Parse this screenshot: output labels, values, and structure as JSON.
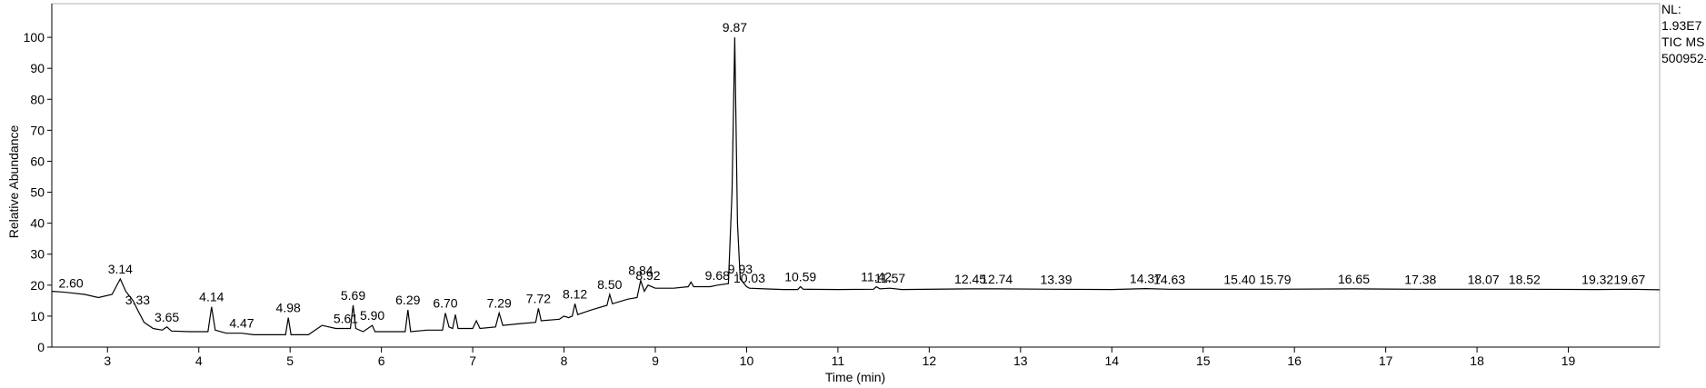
{
  "chart_data": {
    "type": "line",
    "xlabel": "Time (min)",
    "ylabel": "Relative Abundance",
    "info": [
      "NL:",
      "1.93E7",
      "TIC MS",
      "500952-"
    ],
    "color": "#000000",
    "xlim": [
      2.39,
      20.0
    ],
    "ylim": [
      0,
      110
    ],
    "xticks": [
      3,
      4,
      5,
      6,
      7,
      8,
      9,
      10,
      11,
      12,
      13,
      14,
      15,
      16,
      17,
      18,
      19
    ],
    "yticks": [
      0,
      10,
      20,
      30,
      40,
      50,
      60,
      70,
      80,
      90,
      100
    ],
    "x": [
      2.39,
      2.5,
      2.6,
      2.75,
      2.9,
      3.05,
      3.14,
      3.2,
      3.28,
      3.33,
      3.4,
      3.5,
      3.6,
      3.65,
      3.7,
      3.9,
      4.1,
      4.14,
      4.18,
      4.3,
      4.47,
      4.6,
      4.8,
      4.95,
      4.98,
      5.01,
      5.2,
      5.35,
      5.5,
      5.61,
      5.66,
      5.69,
      5.72,
      5.8,
      5.9,
      5.93,
      6.1,
      6.26,
      6.29,
      6.32,
      6.5,
      6.67,
      6.7,
      6.74,
      6.78,
      6.81,
      6.84,
      7.0,
      7.04,
      7.08,
      7.25,
      7.29,
      7.33,
      7.5,
      7.69,
      7.72,
      7.75,
      7.95,
      8.0,
      8.05,
      8.09,
      8.12,
      8.15,
      8.3,
      8.47,
      8.5,
      8.53,
      8.7,
      8.8,
      8.84,
      8.88,
      8.92,
      9.0,
      9.2,
      9.36,
      9.39,
      9.42,
      9.6,
      9.68,
      9.8,
      9.84,
      9.87,
      9.9,
      9.93,
      10.0,
      10.03,
      10.2,
      10.4,
      10.56,
      10.59,
      10.62,
      11.0,
      11.39,
      11.42,
      11.46,
      11.57,
      11.7,
      12.45,
      12.74,
      13.39,
      14.0,
      14.37,
      14.63,
      15.4,
      15.79,
      16.65,
      17.38,
      18.07,
      18.52,
      19.32,
      19.67,
      20.0
    ],
    "values": [
      18,
      17.8,
      17.5,
      17,
      16,
      17,
      22,
      18,
      15,
      12,
      8,
      6,
      5.5,
      6.5,
      5.2,
      5,
      5,
      13,
      5.5,
      4.5,
      4.5,
      4,
      4,
      4,
      9.5,
      4,
      4,
      7,
      6,
      6,
      6,
      13.5,
      6,
      5,
      7,
      5,
      5,
      5,
      12,
      5,
      5.5,
      5.5,
      11,
      6.5,
      6,
      10.5,
      6,
      6,
      8.5,
      6,
      6.5,
      11,
      7,
      7.5,
      8,
      12.5,
      8.5,
      9,
      10,
      9.5,
      10,
      14,
      10.5,
      12,
      13.5,
      17,
      14,
      15.5,
      16,
      21.5,
      18,
      20,
      19,
      19,
      19.5,
      21,
      19.5,
      19.5,
      20,
      20.5,
      50,
      100,
      40,
      22,
      19.5,
      19,
      18.8,
      18.6,
      18.6,
      19.5,
      18.7,
      18.6,
      18.7,
      19.5,
      18.8,
      19,
      18.6,
      18.8,
      18.8,
      18.7,
      18.6,
      18.9,
      18.7,
      18.7,
      18.7,
      18.8,
      18.7,
      18.7,
      18.7,
      18.6,
      18.7,
      18.5
    ],
    "peaks": [
      {
        "rt": 2.6,
        "label": "2.60",
        "height": 17.5
      },
      {
        "rt": 3.14,
        "label": "3.14",
        "height": 22
      },
      {
        "rt": 3.33,
        "label": "3.33",
        "height": 12
      },
      {
        "rt": 3.65,
        "label": "3.65",
        "height": 6.5
      },
      {
        "rt": 4.14,
        "label": "4.14",
        "height": 13
      },
      {
        "rt": 4.47,
        "label": "4.47",
        "height": 4.5
      },
      {
        "rt": 4.98,
        "label": "4.98",
        "height": 9.5
      },
      {
        "rt": 5.61,
        "label": "5.61",
        "height": 6
      },
      {
        "rt": 5.69,
        "label": "5.69",
        "height": 13.5
      },
      {
        "rt": 5.9,
        "label": "5.90",
        "height": 7
      },
      {
        "rt": 6.29,
        "label": "6.29",
        "height": 12
      },
      {
        "rt": 6.7,
        "label": "6.70",
        "height": 11
      },
      {
        "rt": 7.29,
        "label": "7.29",
        "height": 11
      },
      {
        "rt": 7.72,
        "label": "7.72",
        "height": 12.5
      },
      {
        "rt": 8.12,
        "label": "8.12",
        "height": 14
      },
      {
        "rt": 8.5,
        "label": "8.50",
        "height": 17
      },
      {
        "rt": 8.84,
        "label": "8.84",
        "height": 21.5
      },
      {
        "rt": 8.92,
        "label": "8.92",
        "height": 20
      },
      {
        "rt": 9.68,
        "label": "9.68",
        "height": 20
      },
      {
        "rt": 9.87,
        "label": "9.87",
        "height": 100
      },
      {
        "rt": 9.93,
        "label": "9.93",
        "height": 22
      },
      {
        "rt": 10.03,
        "label": "10.03",
        "height": 19
      },
      {
        "rt": 10.59,
        "label": "10.59",
        "height": 19.5
      },
      {
        "rt": 11.42,
        "label": "11.42",
        "height": 19.5
      },
      {
        "rt": 11.57,
        "label": "11.57",
        "height": 19
      },
      {
        "rt": 12.45,
        "label": "12.45",
        "height": 18.8
      },
      {
        "rt": 12.74,
        "label": "12.74",
        "height": 18.8
      },
      {
        "rt": 13.39,
        "label": "13.39",
        "height": 18.7
      },
      {
        "rt": 14.37,
        "label": "14.37",
        "height": 18.9
      },
      {
        "rt": 14.63,
        "label": "14.63",
        "height": 18.7
      },
      {
        "rt": 15.4,
        "label": "15.40",
        "height": 18.7
      },
      {
        "rt": 15.79,
        "label": "15.79",
        "height": 18.7
      },
      {
        "rt": 16.65,
        "label": "16.65",
        "height": 18.8
      },
      {
        "rt": 17.38,
        "label": "17.38",
        "height": 18.7
      },
      {
        "rt": 18.07,
        "label": "18.07",
        "height": 18.7
      },
      {
        "rt": 18.52,
        "label": "18.52",
        "height": 18.7
      },
      {
        "rt": 19.32,
        "label": "19.32",
        "height": 18.6
      },
      {
        "rt": 19.67,
        "label": "19.67",
        "height": 18.7
      }
    ]
  }
}
